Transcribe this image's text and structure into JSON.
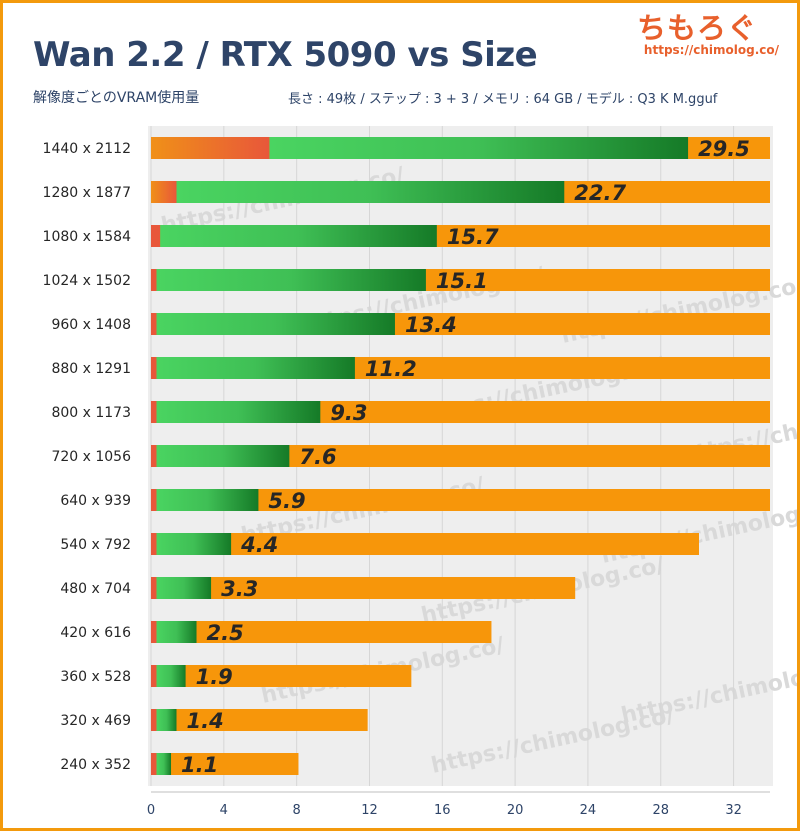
{
  "header": {
    "title": "Wan 2.2 / RTX 5090 vs Size",
    "subtitle": "解像度ごとのVRAM使用量",
    "params": "長さ : 49枚 / ステップ : 3 + 3 / メモリ : 64 GB / モデル : Q3 K M.gguf"
  },
  "logo": {
    "text": "ちもろぐ",
    "url": "https://chimolog.co/"
  },
  "watermark_text": "https://chimolog.co/",
  "colors": {
    "orange": "#f7960a",
    "orange_red": "#e8573a",
    "green_light": "#4ad461",
    "green_dark": "#157a27",
    "title": "#2e4468",
    "label": "#262626"
  },
  "chart_data": {
    "type": "bar",
    "orientation": "horizontal",
    "title": "Wan 2.2 / RTX 5090 vs Size",
    "subtitle": "解像度ごとのVRAM使用量",
    "xlim": [
      0,
      34
    ],
    "xticks": [
      0,
      4,
      8,
      12,
      16,
      20,
      24,
      28,
      32
    ],
    "categories": [
      "1440 x 2112",
      "1280 x 1877",
      "1080 x 1584",
      "1024 x 1502",
      "960 x 1408",
      "880 x 1291",
      "800 x 1173",
      "720 x 1056",
      "640 x 939",
      "540 x 792",
      "480 x 704",
      "420 x 616",
      "360 x 528",
      "320 x 469",
      "240 x 352"
    ],
    "series": [
      {
        "name": "prefix",
        "values": [
          6.5,
          1.4,
          0.5,
          0.3,
          0.3,
          0.3,
          0.3,
          0.3,
          0.3,
          0.3,
          0.3,
          0.3,
          0.3,
          0.3,
          0.3
        ]
      },
      {
        "name": "vram_gb",
        "values": [
          29.5,
          22.7,
          15.7,
          15.1,
          13.4,
          11.2,
          9.3,
          7.6,
          5.9,
          4.4,
          3.3,
          2.5,
          1.9,
          1.4,
          1.1
        ]
      },
      {
        "name": "total",
        "values": [
          34,
          34,
          34,
          34,
          34,
          34,
          34,
          34,
          34,
          30.1,
          23.3,
          18.7,
          14.3,
          11.9,
          8.1
        ]
      }
    ],
    "value_labels": [
      "29.5",
      "22.7",
      "15.7",
      "15.1",
      "13.4",
      "11.2",
      "9.3",
      "7.6",
      "5.9",
      "4.4",
      "3.3",
      "2.5",
      "1.9",
      "1.4",
      "1.1"
    ]
  }
}
